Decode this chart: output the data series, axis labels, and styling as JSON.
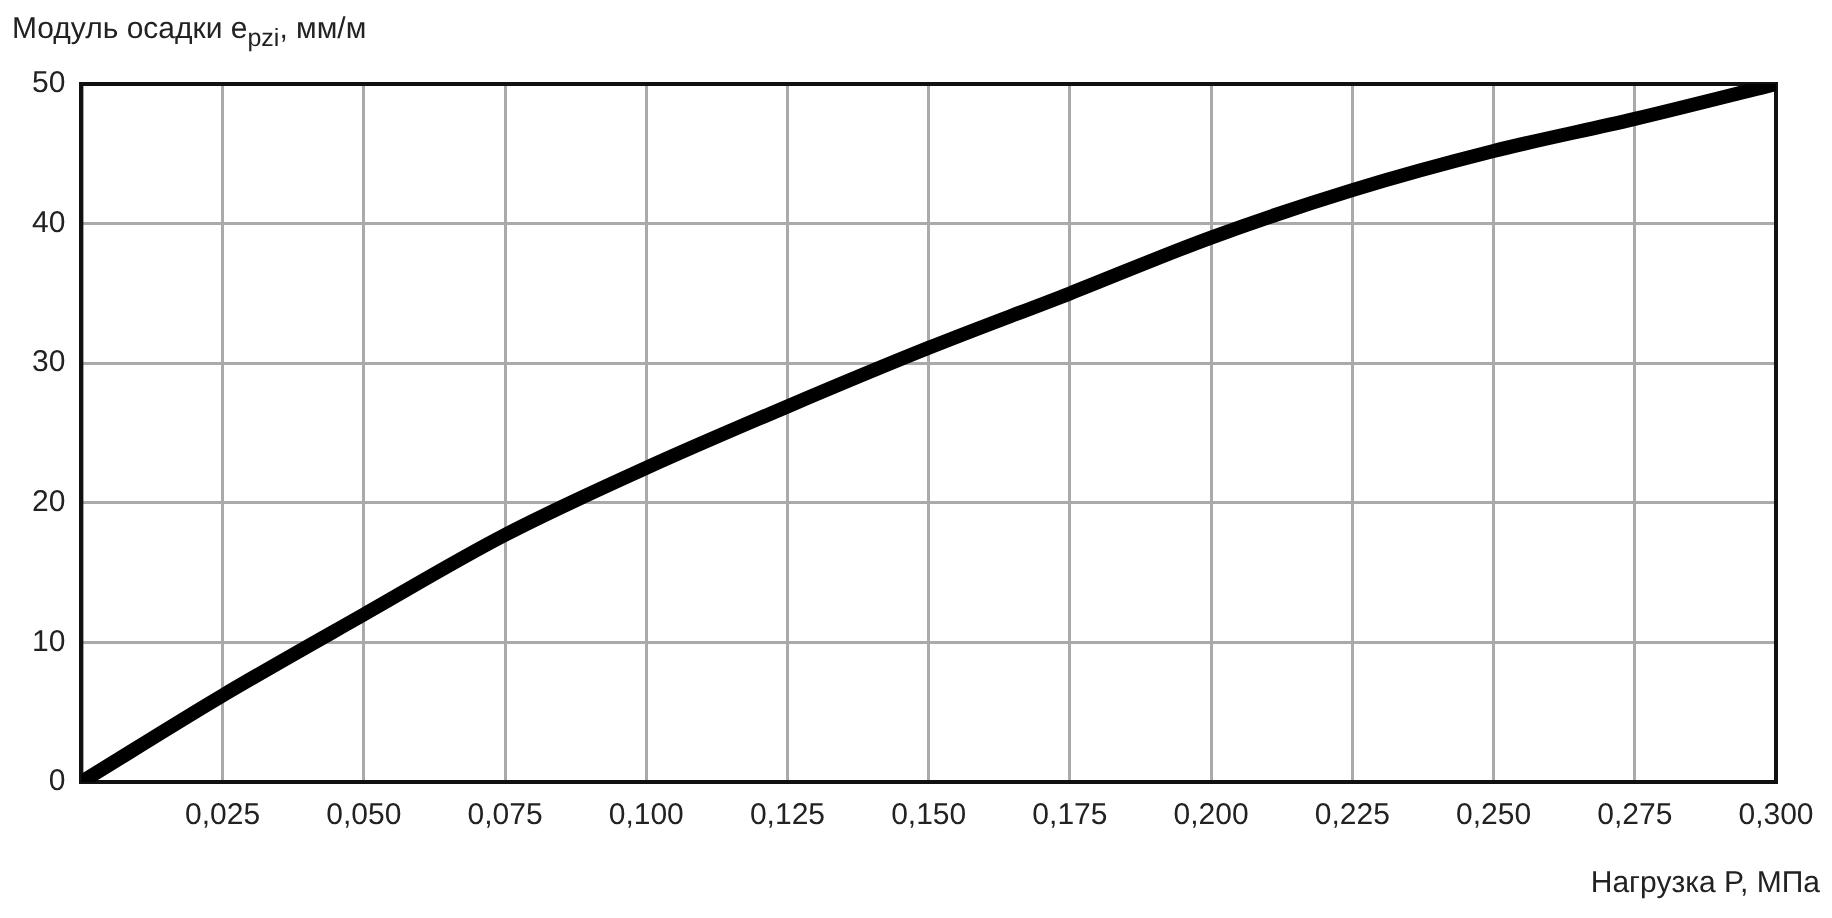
{
  "chart_data": {
    "type": "line",
    "ylabel": "Модуль осадки e$_{pzi}$, мм/м",
    "xlabel": "Нагрузка P, МПа",
    "x": [
      0,
      0.025,
      0.05,
      0.075,
      0.1,
      0.125,
      0.15,
      0.175,
      0.2,
      0.225,
      0.25,
      0.275,
      0.3
    ],
    "series": [
      {
        "color": "#000000",
        "values": [
          0,
          6.2,
          12.0,
          17.7,
          22.5,
          26.9,
          31.1,
          35.0,
          39.0,
          42.4,
          45.2,
          47.5,
          50
        ]
      }
    ],
    "xlim": [
      0,
      0.3
    ],
    "xticks": [
      {
        "value": 0,
        "label": null
      },
      {
        "value": 0.025,
        "label": "0,025"
      },
      {
        "value": 0.05,
        "label": "0,050"
      },
      {
        "value": 0.075,
        "label": "0,075"
      },
      {
        "value": 0.1,
        "label": "0,100"
      },
      {
        "value": 0.125,
        "label": "0,125"
      },
      {
        "value": 0.15,
        "label": "0,150"
      },
      {
        "value": 0.175,
        "label": "0,175"
      },
      {
        "value": 0.2,
        "label": "0,200"
      },
      {
        "value": 0.225,
        "label": "0,225"
      },
      {
        "value": 0.25,
        "label": "0,250"
      },
      {
        "value": 0.275,
        "label": "0,275"
      },
      {
        "value": 0.3,
        "label": "0,300"
      }
    ],
    "ylim": [
      0,
      50
    ],
    "yticks": [
      0,
      10,
      20,
      30,
      40,
      50
    ],
    "grid": true,
    "legend": false
  }
}
